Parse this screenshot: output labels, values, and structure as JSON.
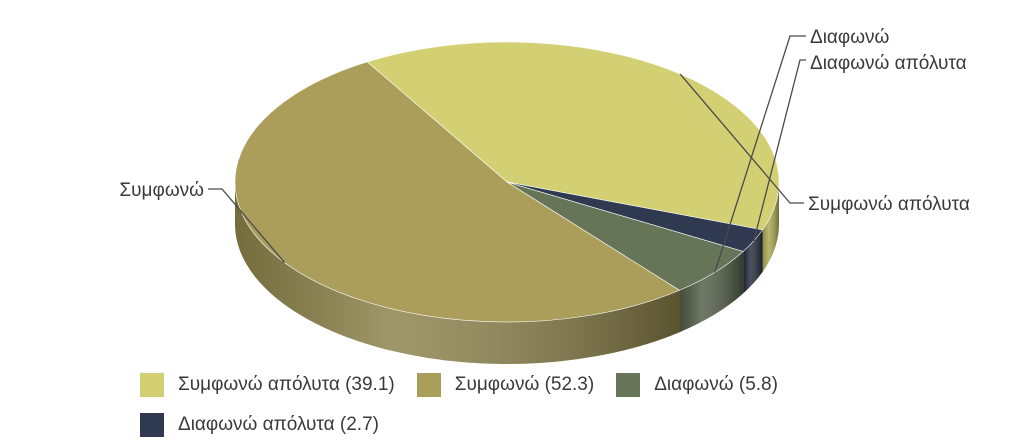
{
  "chart_data": {
    "type": "pie",
    "title": "",
    "categories": [
      "Συμφωνώ απόλυτα",
      "Συμφωνώ",
      "Διαφωνώ",
      "Διαφωνώ απόλυτα"
    ],
    "values": [
      39.1,
      52.3,
      5.8,
      2.7
    ],
    "colors": [
      "#d3cf73",
      "#aa9e5a",
      "#667558",
      "#2f3a50"
    ],
    "side_colors": [
      "#a9a650",
      "#8a8048",
      "#4f5b44",
      "#22293a"
    ],
    "legend": {
      "placement": "bottom",
      "entries": [
        "Συμφωνώ απόλυτα (39.1)",
        "Συμφωνώ (52.3)",
        "Διαφωνώ (5.8)",
        "Διαφωνώ απόλυτα (2.7)"
      ]
    },
    "three_d": true
  }
}
